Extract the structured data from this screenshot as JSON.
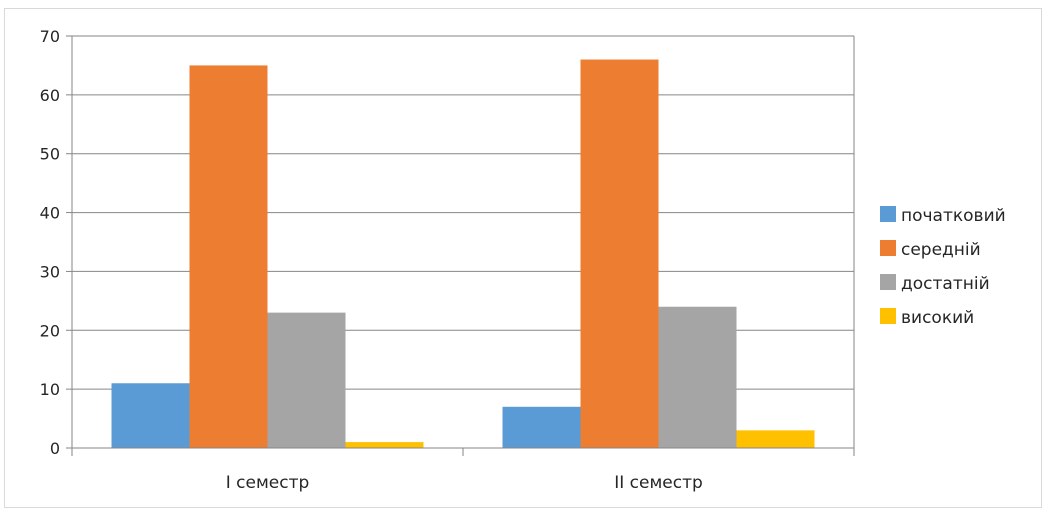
{
  "chart_data": {
    "type": "bar",
    "categories": [
      "I семестр",
      "II семестр"
    ],
    "series": [
      {
        "name": "початковий",
        "values": [
          11,
          7
        ],
        "color": "#5b9bd5"
      },
      {
        "name": "середній",
        "values": [
          65,
          66
        ],
        "color": "#ed7d31"
      },
      {
        "name": "достатній",
        "values": [
          23,
          24
        ],
        "color": "#a5a5a5"
      },
      {
        "name": "високий",
        "values": [
          1,
          3
        ],
        "color": "#ffc000"
      }
    ],
    "title": "",
    "xlabel": "",
    "ylabel": "",
    "ylim": [
      0,
      70
    ],
    "yticks": [
      "0",
      "10",
      "20",
      "30",
      "40",
      "50",
      "60",
      "70"
    ],
    "grid": true,
    "legend_position": "right"
  }
}
